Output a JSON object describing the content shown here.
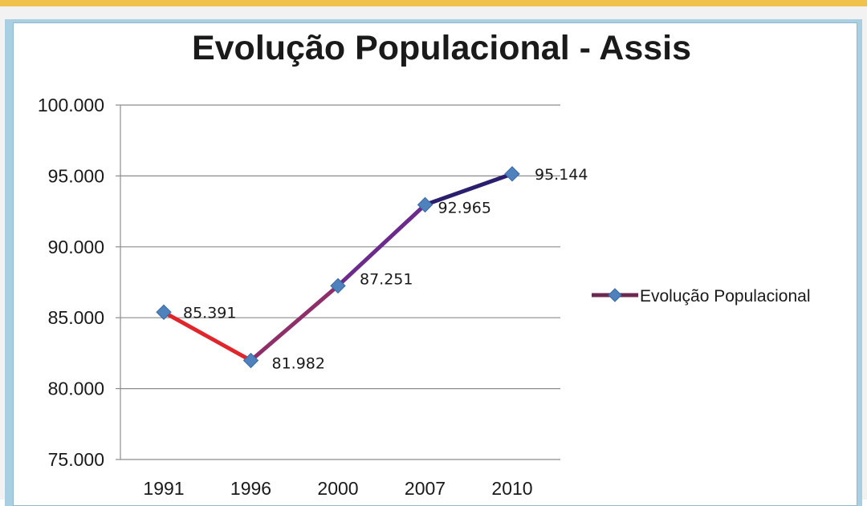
{
  "chart_data": {
    "type": "line",
    "title": "Evolução Populacional - Assis",
    "xlabel": "",
    "ylabel": "",
    "categories": [
      "1991",
      "1996",
      "2000",
      "2007",
      "2010"
    ],
    "series": [
      {
        "name": "Evolução Populacional",
        "values": [
          85391,
          81982,
          87251,
          92965,
          95144
        ],
        "value_labels": [
          "85.391",
          "81.982",
          "87.251",
          "92.965",
          "95.144"
        ],
        "line_colors": [
          "#e0262b",
          "#8e2f6a",
          "#6b2a8c",
          "#2a1e6e"
        ],
        "marker_color": "#4f81bd"
      }
    ],
    "ylim": [
      75000,
      100000
    ],
    "yticks": [
      75000,
      80000,
      85000,
      90000,
      95000,
      100000
    ],
    "ytick_labels": [
      "75.000",
      "80.000",
      "85.000",
      "90.000",
      "95.000",
      "100.000"
    ],
    "grid": true,
    "legend_position": "right"
  }
}
